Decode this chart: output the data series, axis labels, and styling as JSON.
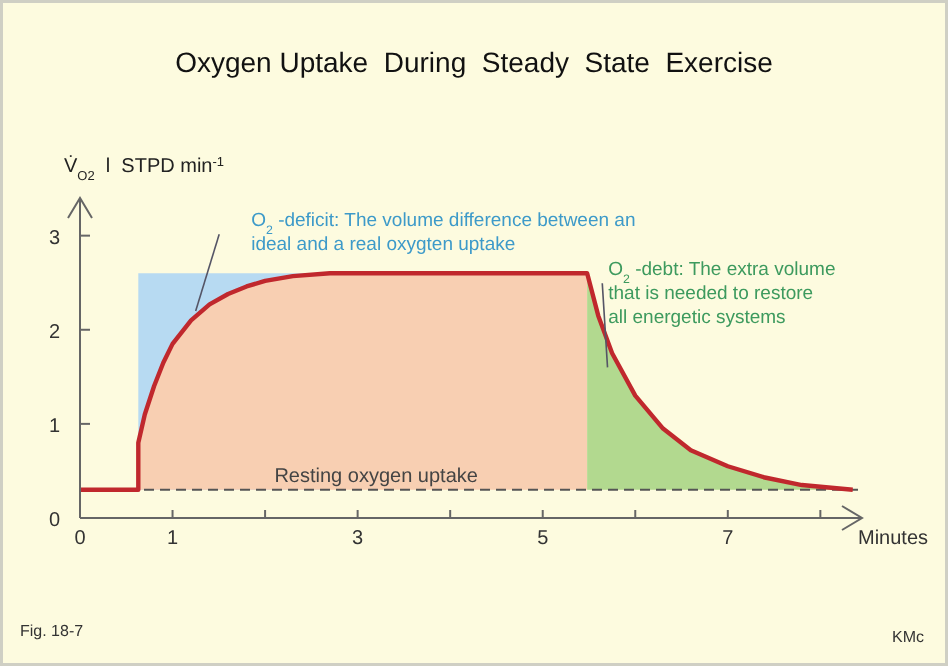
{
  "chart_data": {
    "type": "area",
    "title": "Oxygen Uptake  During  Steady  State  Exercise",
    "xlabel": "Minutes",
    "ylabel": "V̇$_{O2}$ l  STPD min$^{-1}$",
    "xlim": [
      0,
      8.45
    ],
    "ylim": [
      0,
      3.4
    ],
    "xticks": [
      0,
      1,
      {
        "value": 2,
        "label": null
      },
      3,
      {
        "value": 4,
        "label": null
      },
      5,
      {
        "value": 6,
        "label": null
      },
      7,
      {
        "value": 8,
        "label": null
      }
    ],
    "yticks": [
      0,
      1,
      2,
      3
    ],
    "grid": false,
    "series": [
      {
        "type": "area",
        "color": "#b7daf2",
        "x": [
          0.63,
          0.7,
          0.8,
          0.9,
          1.0,
          1.2,
          1.4,
          1.6,
          1.8,
          2.0,
          2.3,
          2.7
        ],
        "values": [
          2.6,
          2.6,
          2.6,
          2.6,
          2.6,
          2.6,
          2.6,
          2.6,
          2.6,
          2.6,
          2.6,
          2.6
        ]
      },
      {
        "type": "area",
        "color": "#f8cfb2",
        "x": [
          0.63,
          0.7,
          0.8,
          0.9,
          1.0,
          1.2,
          1.4,
          1.6,
          1.8,
          2.0,
          2.3,
          2.7,
          5.48
        ],
        "values": [
          0.8,
          1.1,
          1.4,
          1.65,
          1.85,
          2.1,
          2.27,
          2.38,
          2.46,
          2.52,
          2.57,
          2.6,
          2.6
        ]
      },
      {
        "type": "area",
        "color": "#b2d98f",
        "x": [
          5.48,
          5.6,
          5.75,
          6.0,
          6.3,
          6.6,
          7.0,
          7.4,
          7.8,
          8.35
        ],
        "values": [
          2.6,
          2.15,
          1.75,
          1.3,
          0.95,
          0.72,
          0.55,
          0.43,
          0.35,
          0.3
        ]
      },
      {
        "type": "line",
        "color": "#c0282d",
        "line_style": "solid",
        "marker": "none",
        "x": [
          0,
          0.63,
          0.63,
          0.7,
          0.8,
          0.9,
          1.0,
          1.2,
          1.4,
          1.6,
          1.8,
          2.0,
          2.3,
          2.7,
          5.48,
          5.6,
          5.75,
          6.0,
          6.3,
          6.6,
          7.0,
          7.4,
          7.8,
          8.35
        ],
        "values": [
          0.3,
          0.3,
          0.8,
          1.1,
          1.4,
          1.65,
          1.85,
          2.1,
          2.27,
          2.38,
          2.46,
          2.52,
          2.57,
          2.6,
          2.6,
          2.15,
          1.75,
          1.3,
          0.95,
          0.72,
          0.55,
          0.43,
          0.35,
          0.3
        ]
      }
    ],
    "ref_lines": [
      {
        "axis": "y",
        "value": 0.3,
        "label": "Resting oxygen uptake",
        "color": "#555555",
        "line_style": "dashed"
      }
    ],
    "annotations": [
      "O$_{2}$-deficit: The volume difference between an ideal and a real oxygten uptake",
      "O$_{2}$-debt: The extra volume that is needed to restore all energetic systems",
      "Fig. 18-7",
      "KMc"
    ]
  }
}
